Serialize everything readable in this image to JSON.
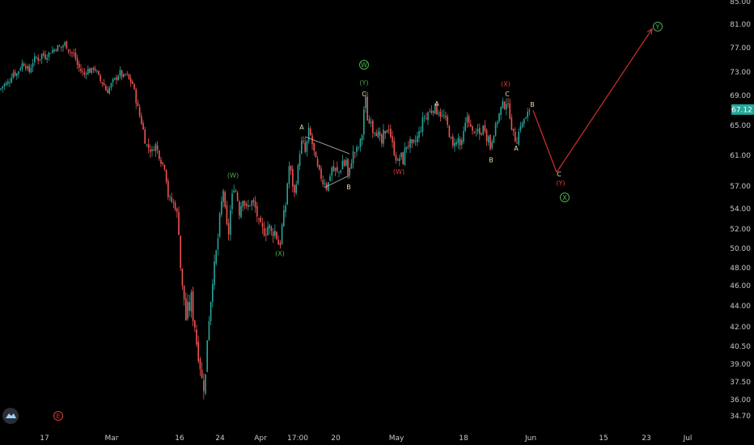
{
  "colors": {
    "background": "#000000",
    "up": "#26a69a",
    "down": "#ef5350",
    "axis_text": "#c8c8c8",
    "label_orange": "#f2d9a6",
    "label_green": "#4caf50",
    "label_red": "#e53935",
    "projection": "#d32f2f",
    "triangle": "#bdbdbd",
    "price_badge": "#26a69a"
  },
  "branding": {
    "logo_icon": "tradingview-cloud-icon"
  },
  "chart_data": {
    "type": "candlestick",
    "title": "",
    "xlabel": "",
    "ylabel": "",
    "y_axis_side": "right",
    "y_ticks": [
      "85.00",
      "81.00",
      "77.00",
      "73.00",
      "69.00",
      "65.00",
      "61.00",
      "57.00",
      "54.00",
      "52.00",
      "50.00",
      "48.00",
      "46.00",
      "44.00",
      "42.00",
      "40.50",
      "39.00",
      "37.50",
      "36.00",
      "34.70"
    ],
    "y_tick_values": [
      85,
      81,
      77,
      73,
      69,
      65,
      61,
      57,
      54,
      52,
      50,
      48,
      46,
      44,
      42,
      40.5,
      39,
      37.5,
      36,
      34.7
    ],
    "x_ticks": [
      "17",
      "Mar",
      "16",
      "24",
      "Apr",
      "17:00",
      "20",
      "May",
      "18",
      "Jun",
      "15",
      "23",
      "Jul"
    ],
    "last_price": "67.12",
    "price_path": [
      [
        0,
        70.0
      ],
      [
        4,
        70.8
      ],
      [
        8,
        71.0
      ],
      [
        12,
        71.5
      ],
      [
        16,
        73.0
      ],
      [
        20,
        72.5
      ],
      [
        24,
        73.5
      ],
      [
        28,
        74.5
      ],
      [
        32,
        74.0
      ],
      [
        36,
        73.0
      ],
      [
        40,
        74.5
      ],
      [
        44,
        75.5
      ],
      [
        48,
        75.0
      ],
      [
        52,
        76.0
      ],
      [
        56,
        75.5
      ],
      [
        60,
        76.0
      ],
      [
        64,
        76.5
      ],
      [
        68,
        76.8
      ],
      [
        72,
        77.2
      ],
      [
        76,
        77.0
      ],
      [
        80,
        77.8
      ],
      [
        84,
        76.8
      ],
      [
        88,
        76.2
      ],
      [
        92,
        75.8
      ],
      [
        96,
        74.0
      ],
      [
        100,
        73.2
      ],
      [
        104,
        72.5
      ],
      [
        108,
        73.5
      ],
      [
        112,
        73.0
      ],
      [
        116,
        73.8
      ],
      [
        120,
        72.8
      ],
      [
        124,
        71.5
      ],
      [
        128,
        71.0
      ],
      [
        132,
        69.5
      ],
      [
        136,
        70.5
      ],
      [
        140,
        71.5
      ],
      [
        144,
        72.0
      ],
      [
        148,
        73.0
      ],
      [
        152,
        72.0
      ],
      [
        156,
        72.8
      ],
      [
        160,
        71.5
      ],
      [
        164,
        71.0
      ],
      [
        168,
        68.5
      ],
      [
        172,
        66.5
      ],
      [
        176,
        65.0
      ],
      [
        180,
        62.5
      ],
      [
        184,
        62.0
      ],
      [
        188,
        61.5
      ],
      [
        192,
        62.5
      ],
      [
        196,
        61.2
      ],
      [
        200,
        60.0
      ],
      [
        204,
        59.5
      ],
      [
        208,
        55.5
      ],
      [
        212,
        55.0
      ],
      [
        216,
        54.5
      ],
      [
        220,
        53.0
      ],
      [
        222,
        50.5
      ],
      [
        224,
        46.5
      ],
      [
        226,
        45.5
      ],
      [
        228,
        44.5
      ],
      [
        230,
        42.5
      ],
      [
        232,
        44.0
      ],
      [
        234,
        43.5
      ],
      [
        236,
        45.5
      ],
      [
        238,
        43.0
      ],
      [
        240,
        42.5
      ],
      [
        242,
        41.5
      ],
      [
        244,
        40.0
      ],
      [
        246,
        39.5
      ],
      [
        248,
        38.5
      ],
      [
        250,
        37.5
      ],
      [
        252,
        37.0
      ],
      [
        254,
        38.0
      ],
      [
        256,
        41.0
      ],
      [
        258,
        42.5
      ],
      [
        260,
        44.0
      ],
      [
        262,
        46.0
      ],
      [
        264,
        47.5
      ],
      [
        266,
        49.0
      ],
      [
        268,
        50.0
      ],
      [
        270,
        51.5
      ],
      [
        272,
        53.5
      ],
      [
        274,
        55.0
      ],
      [
        276,
        56.5
      ],
      [
        278,
        54.0
      ],
      [
        280,
        52.5
      ],
      [
        282,
        51.0
      ],
      [
        284,
        53.0
      ],
      [
        286,
        55.0
      ],
      [
        288,
        56.5
      ],
      [
        290,
        57.0
      ],
      [
        292,
        56.0
      ],
      [
        294,
        55.0
      ],
      [
        296,
        53.5
      ],
      [
        298,
        54.5
      ],
      [
        300,
        55.5
      ],
      [
        304,
        54.0
      ],
      [
        308,
        54.5
      ],
      [
        312,
        55.0
      ],
      [
        316,
        54.0
      ],
      [
        320,
        52.5
      ],
      [
        324,
        52.0
      ],
      [
        328,
        51.5
      ],
      [
        332,
        52.5
      ],
      [
        336,
        51.5
      ],
      [
        340,
        51.8
      ],
      [
        344,
        50.5
      ],
      [
        346,
        50.2
      ],
      [
        348,
        52.0
      ],
      [
        350,
        53.0
      ],
      [
        352,
        54.0
      ],
      [
        354,
        55.0
      ],
      [
        356,
        59.0
      ],
      [
        358,
        59.8
      ],
      [
        360,
        58.5
      ],
      [
        362,
        57.0
      ],
      [
        364,
        56.0
      ],
      [
        366,
        57.5
      ],
      [
        368,
        59.0
      ],
      [
        370,
        61.0
      ],
      [
        372,
        62.5
      ],
      [
        374,
        63.0
      ],
      [
        376,
        62.0
      ],
      [
        378,
        61.0
      ],
      [
        380,
        63.5
      ],
      [
        382,
        64.5
      ],
      [
        384,
        63.5
      ],
      [
        386,
        62.5
      ],
      [
        388,
        61.5
      ],
      [
        390,
        60.5
      ],
      [
        392,
        59.5
      ],
      [
        394,
        59.0
      ],
      [
        396,
        58.5
      ],
      [
        398,
        57.8
      ],
      [
        400,
        57.2
      ],
      [
        402,
        57.8
      ],
      [
        404,
        56.5
      ],
      [
        406,
        57.5
      ],
      [
        408,
        58.5
      ],
      [
        410,
        59.5
      ],
      [
        412,
        58.8
      ],
      [
        414,
        59.5
      ],
      [
        416,
        58.5
      ],
      [
        418,
        59.2
      ],
      [
        420,
        58.5
      ],
      [
        422,
        59.8
      ],
      [
        424,
        60.5
      ],
      [
        426,
        59.5
      ],
      [
        428,
        60.5
      ],
      [
        430,
        58.3
      ],
      [
        432,
        59.0
      ],
      [
        434,
        60.0
      ],
      [
        436,
        61.5
      ],
      [
        438,
        61.0
      ],
      [
        440,
        62.0
      ],
      [
        442,
        61.5
      ],
      [
        444,
        62.5
      ],
      [
        446,
        63.0
      ],
      [
        448,
        64.0
      ],
      [
        450,
        67.5
      ],
      [
        452,
        68.5
      ],
      [
        454,
        66.0
      ],
      [
        456,
        65.0
      ],
      [
        458,
        66.5
      ],
      [
        460,
        64.5
      ],
      [
        462,
        64.0
      ],
      [
        464,
        64.8
      ],
      [
        466,
        63.5
      ],
      [
        468,
        64.0
      ],
      [
        470,
        63.0
      ],
      [
        472,
        62.5
      ],
      [
        474,
        64.0
      ],
      [
        476,
        63.5
      ],
      [
        478,
        64.5
      ],
      [
        480,
        65.0
      ],
      [
        482,
        64.0
      ],
      [
        484,
        63.0
      ],
      [
        486,
        62.0
      ],
      [
        488,
        61.0
      ],
      [
        490,
        60.5
      ],
      [
        492,
        60.0
      ],
      [
        494,
        60.8
      ],
      [
        496,
        61.0
      ],
      [
        498,
        60.0
      ],
      [
        500,
        61.5
      ],
      [
        502,
        62.5
      ],
      [
        504,
        62.0
      ],
      [
        506,
        63.0
      ],
      [
        508,
        62.5
      ],
      [
        510,
        62.0
      ],
      [
        512,
        63.0
      ],
      [
        514,
        62.8
      ],
      [
        516,
        63.5
      ],
      [
        518,
        64.0
      ],
      [
        520,
        64.5
      ],
      [
        522,
        65.5
      ],
      [
        524,
        66.5
      ],
      [
        526,
        65.5
      ],
      [
        528,
        66.5
      ],
      [
        530,
        67.0
      ],
      [
        532,
        66.5
      ],
      [
        534,
        67.5
      ],
      [
        536,
        67.0
      ],
      [
        538,
        67.5
      ],
      [
        540,
        66.8
      ],
      [
        542,
        67.0
      ],
      [
        544,
        66.5
      ],
      [
        546,
        66.0
      ],
      [
        548,
        66.5
      ],
      [
        550,
        65.8
      ],
      [
        552,
        65.5
      ],
      [
        554,
        64.5
      ],
      [
        556,
        63.5
      ],
      [
        558,
        63.0
      ],
      [
        560,
        62.0
      ],
      [
        562,
        63.0
      ],
      [
        564,
        62.5
      ],
      [
        566,
        63.5
      ],
      [
        568,
        62.5
      ],
      [
        570,
        62.0
      ],
      [
        572,
        63.5
      ],
      [
        574,
        64.5
      ],
      [
        576,
        65.5
      ],
      [
        578,
        66.5
      ],
      [
        580,
        65.5
      ],
      [
        582,
        64.5
      ],
      [
        584,
        64.0
      ],
      [
        586,
        64.5
      ],
      [
        588,
        63.5
      ],
      [
        590,
        64.5
      ],
      [
        592,
        64.0
      ],
      [
        594,
        63.5
      ],
      [
        596,
        64.5
      ],
      [
        598,
        65.0
      ],
      [
        600,
        64.5
      ],
      [
        602,
        63.0
      ],
      [
        604,
        63.5
      ],
      [
        606,
        62.0
      ],
      [
        608,
        63.0
      ],
      [
        610,
        64.0
      ],
      [
        612,
        64.5
      ],
      [
        614,
        65.5
      ],
      [
        616,
        66.0
      ],
      [
        618,
        67.0
      ],
      [
        620,
        67.5
      ],
      [
        622,
        68.0
      ],
      [
        624,
        67.5
      ],
      [
        626,
        68.2
      ],
      [
        628,
        67.5
      ],
      [
        630,
        66.5
      ],
      [
        632,
        65.0
      ],
      [
        634,
        64.0
      ],
      [
        636,
        63.5
      ],
      [
        638,
        62.5
      ],
      [
        640,
        63.5
      ],
      [
        642,
        64.5
      ],
      [
        644,
        65.5
      ],
      [
        646,
        65.0
      ],
      [
        648,
        66.0
      ],
      [
        650,
        65.8
      ],
      [
        652,
        66.5
      ],
      [
        654,
        67.0
      ],
      [
        656,
        67.12
      ]
    ],
    "triangle": {
      "line_a": [
        [
          377,
          63.5
        ],
        [
          432,
          61.2
        ]
      ],
      "line_b": [
        [
          401,
          56.8
        ],
        [
          432,
          58.4
        ]
      ]
    },
    "projection": {
      "points": [
        [
          659,
          67.0
        ],
        [
          688,
          58.8
        ],
        [
          806,
          80.2
        ]
      ]
    },
    "wave_labels": [
      {
        "text": "(W)",
        "x": 288,
        "price": 58.4,
        "color": "green"
      },
      {
        "text": "(X)",
        "x": 346,
        "price": 49.5,
        "color": "green"
      },
      {
        "text": "A",
        "x": 373,
        "price": 64.8,
        "color": "orange"
      },
      {
        "text": "B",
        "x": 431,
        "price": 56.9,
        "color": "orange"
      },
      {
        "text": "C",
        "x": 450,
        "price": 69.3,
        "color": "orange"
      },
      {
        "text": "(Y)",
        "x": 450,
        "price": 71.2,
        "color": "green"
      },
      {
        "text": "W",
        "x": 450,
        "price": 74.2,
        "color": "green",
        "circle": true
      },
      {
        "text": "(W)",
        "x": 493,
        "price": 58.9,
        "color": "red"
      },
      {
        "text": "A",
        "x": 540,
        "price": 67.9,
        "color": "orange"
      },
      {
        "text": "B",
        "x": 607,
        "price": 60.4,
        "color": "orange"
      },
      {
        "text": "C",
        "x": 627,
        "price": 69.3,
        "color": "orange"
      },
      {
        "text": "(X)",
        "x": 625,
        "price": 71.0,
        "color": "red"
      },
      {
        "text": "A",
        "x": 638,
        "price": 62.0,
        "color": "orange"
      },
      {
        "text": "B",
        "x": 658,
        "price": 67.8,
        "color": "orange"
      },
      {
        "text": "C",
        "x": 691,
        "price": 58.6,
        "color": "orange"
      },
      {
        "text": "(Y)",
        "x": 693,
        "price": 57.4,
        "color": "red"
      },
      {
        "text": "X",
        "x": 698,
        "price": 55.5,
        "color": "green",
        "circle": true
      },
      {
        "text": "Y",
        "x": 813,
        "price": 80.6,
        "color": "green",
        "circle": true
      },
      {
        "text": "E",
        "x": 72,
        "price": 34.7,
        "color": "red",
        "circle": true
      }
    ]
  }
}
